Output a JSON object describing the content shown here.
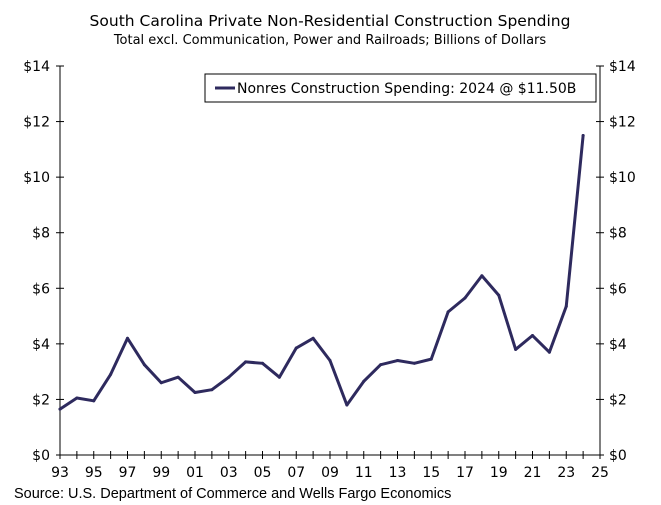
{
  "chart_data": {
    "type": "line",
    "title": "South Carolina Private Non-Residential Construction Spending",
    "subtitle": "Total excl. Communication, Power and Railroads; Billions of Dollars",
    "xlabel": "",
    "ylabel": "",
    "xlim": [
      1993,
      2025
    ],
    "ylim": [
      0,
      14
    ],
    "x_tick_values": [
      1993,
      1995,
      1997,
      1999,
      2001,
      2003,
      2005,
      2007,
      2009,
      2011,
      2013,
      2015,
      2017,
      2019,
      2021,
      2023,
      2025
    ],
    "x_tick_labels": [
      "93",
      "95",
      "97",
      "99",
      "01",
      "03",
      "05",
      "07",
      "09",
      "11",
      "13",
      "15",
      "17",
      "19",
      "21",
      "23",
      "25"
    ],
    "y_tick_values": [
      0,
      2,
      4,
      6,
      8,
      10,
      12,
      14
    ],
    "y_tick_labels_left": [
      "$0",
      "$2",
      "$4",
      "$6",
      "$8",
      "$10",
      "$12",
      "$14"
    ],
    "y_tick_labels_right": [
      "$0",
      "$2",
      "$4",
      "$6",
      "$8",
      "$10",
      "$12",
      "$14"
    ],
    "legend": "top-right",
    "series": [
      {
        "name": "Nonres Construction Spending: 2024 @ $11.50B",
        "color": "#2e2a5e",
        "x": [
          1993,
          1994,
          1995,
          1996,
          1997,
          1998,
          1999,
          2000,
          2001,
          2002,
          2003,
          2004,
          2005,
          2006,
          2007,
          2008,
          2009,
          2010,
          2011,
          2012,
          2013,
          2014,
          2015,
          2016,
          2017,
          2018,
          2019,
          2020,
          2021,
          2022,
          2023,
          2024
        ],
        "values": [
          1.65,
          2.05,
          1.95,
          2.9,
          4.2,
          3.25,
          2.6,
          2.8,
          2.25,
          2.35,
          2.8,
          3.35,
          3.3,
          2.8,
          3.85,
          4.2,
          3.4,
          1.8,
          2.65,
          3.25,
          3.4,
          3.3,
          3.45,
          5.15,
          5.65,
          6.45,
          5.75,
          3.8,
          4.3,
          3.7,
          5.35,
          11.5
        ]
      }
    ]
  },
  "source": "Source: U.S. Department of Commerce and Wells Fargo Economics"
}
